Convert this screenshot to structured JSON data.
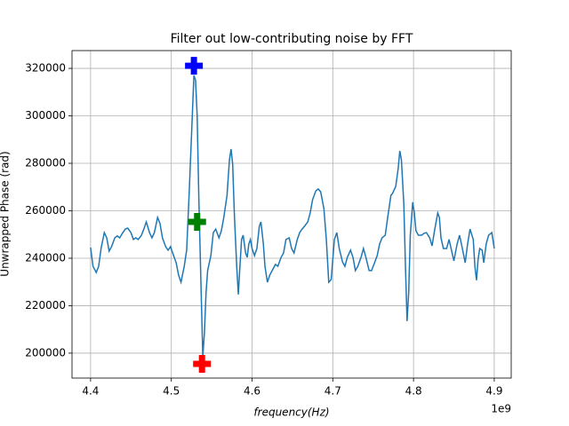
{
  "chart_data": {
    "type": "line",
    "title": "Filter out low-contributing noise by FFT",
    "xlabel": "frequency(Hz)",
    "ylabel": "Unwrapped Phase (rad)",
    "x_offset_label": "1e9",
    "xlim": [
      4.377,
      4.921
    ],
    "ylim": [
      189500,
      327500
    ],
    "xticks": [
      4.4,
      4.5,
      4.6,
      4.7,
      4.8,
      4.9
    ],
    "yticks": [
      200000,
      220000,
      240000,
      260000,
      280000,
      300000,
      320000
    ],
    "grid": true,
    "series": [
      {
        "color": "#1f77b4",
        "x": [
          4.4,
          4.403,
          4.407,
          4.41,
          4.413,
          4.417,
          4.42,
          4.423,
          4.426,
          4.43,
          4.433,
          4.436,
          4.44,
          4.443,
          4.446,
          4.45,
          4.453,
          4.456,
          4.459,
          4.463,
          4.466,
          4.469,
          4.473,
          4.476,
          4.479,
          4.483,
          4.486,
          4.489,
          4.493,
          4.496,
          4.499,
          4.502,
          4.506,
          4.509,
          4.512,
          4.516,
          4.519,
          4.522,
          4.526,
          4.528,
          4.53,
          4.532,
          4.534,
          4.537,
          4.539,
          4.541,
          4.543,
          4.545,
          4.549,
          4.552,
          4.555,
          4.559,
          4.562,
          4.565,
          4.569,
          4.572,
          4.574,
          4.576,
          4.578,
          4.581,
          4.583,
          4.585,
          4.587,
          4.589,
          4.592,
          4.594,
          4.596,
          4.598,
          4.6,
          4.603,
          4.606,
          4.609,
          4.611,
          4.614,
          4.616,
          4.619,
          4.622,
          4.626,
          4.629,
          4.632,
          4.636,
          4.639,
          4.642,
          4.646,
          4.649,
          4.652,
          4.656,
          4.659,
          4.662,
          4.665,
          4.669,
          4.672,
          4.675,
          4.679,
          4.682,
          4.685,
          4.689,
          4.692,
          4.695,
          4.698,
          4.702,
          4.705,
          4.708,
          4.712,
          4.715,
          4.718,
          4.722,
          4.725,
          4.728,
          4.731,
          4.735,
          4.738,
          4.741,
          4.745,
          4.748,
          4.751,
          4.755,
          4.758,
          4.761,
          4.765,
          4.768,
          4.772,
          4.774,
          4.778,
          4.781,
          4.783,
          4.785,
          4.788,
          4.79,
          4.792,
          4.794,
          4.796,
          4.799,
          4.801,
          4.803,
          4.806,
          4.81,
          4.813,
          4.816,
          4.82,
          4.823,
          4.826,
          4.83,
          4.832,
          4.834,
          4.837,
          4.841,
          4.844,
          4.847,
          4.85,
          4.854,
          4.857,
          4.86,
          4.864,
          4.867,
          4.87,
          4.874,
          4.876,
          4.878,
          4.88,
          4.882,
          4.885,
          4.887,
          4.89,
          4.893,
          4.897,
          4.9
        ],
        "values": [
          244500,
          236600,
          234000,
          236600,
          244100,
          250800,
          248600,
          243000,
          244900,
          248600,
          249400,
          248600,
          250800,
          252300,
          252700,
          250800,
          247900,
          248600,
          247900,
          249700,
          252300,
          255300,
          250800,
          248600,
          250800,
          257200,
          254600,
          248600,
          244900,
          243400,
          244900,
          241900,
          238100,
          232900,
          229900,
          236600,
          243400,
          266500,
          300200,
          317000,
          315100,
          300200,
          266500,
          225400,
          198500,
          208600,
          225400,
          234800,
          241100,
          250800,
          252300,
          248600,
          251600,
          257200,
          266500,
          281500,
          286000,
          279600,
          259100,
          236600,
          224700,
          236600,
          247900,
          249700,
          242200,
          240400,
          246000,
          247900,
          244100,
          241100,
          244100,
          253500,
          255300,
          246000,
          236600,
          229900,
          232900,
          235500,
          237400,
          236600,
          240400,
          242200,
          247900,
          248600,
          244100,
          242200,
          247900,
          250800,
          252300,
          253500,
          255300,
          259100,
          264700,
          268400,
          269200,
          268000,
          260900,
          247900,
          229900,
          231000,
          247900,
          250800,
          244100,
          238500,
          236600,
          240400,
          243400,
          240400,
          234800,
          236600,
          240400,
          244100,
          240400,
          234800,
          234800,
          237400,
          241100,
          246000,
          248600,
          249700,
          257200,
          266500,
          267300,
          270300,
          277800,
          285200,
          281500,
          262800,
          236600,
          213500,
          225400,
          249700,
          263600,
          259100,
          251600,
          249700,
          249700,
          250500,
          250800,
          248600,
          245200,
          251600,
          259100,
          257200,
          248600,
          244100,
          244100,
          247900,
          243400,
          238900,
          246000,
          249700,
          244900,
          238100,
          246000,
          252300,
          247900,
          236600,
          230700,
          239600,
          244100,
          243400,
          238100,
          246000,
          249700,
          250800,
          244100
        ]
      }
    ],
    "markers": [
      {
        "x": 4.528,
        "y": 321100,
        "color": "#0000ff"
      },
      {
        "x": 4.532,
        "y": 255300,
        "color": "#008000"
      },
      {
        "x": 4.538,
        "y": 195500,
        "color": "#ff0000"
      }
    ]
  }
}
